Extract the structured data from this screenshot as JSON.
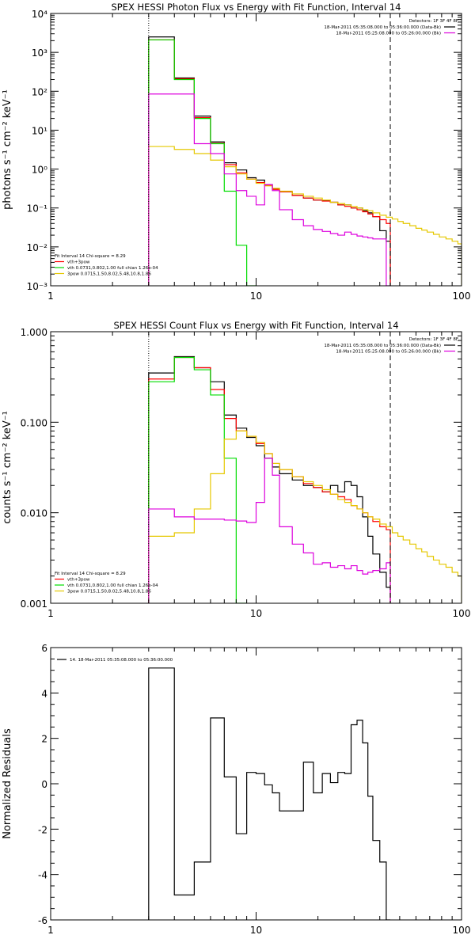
{
  "colors": {
    "black": "#000000",
    "red": "#ff0000",
    "green": "#00dd00",
    "yellow": "#e5c800",
    "magenta": "#dd00dd"
  },
  "chart_data": [
    {
      "type": "line",
      "title": "SPEX HESSI Photon Flux vs Energy with Fit Function, Interval 14",
      "ylabel": "photons s⁻¹ cm⁻² keV⁻¹",
      "xscale": "log",
      "yscale": "log",
      "xlim": [
        1,
        100
      ],
      "ylim": [
        0.001,
        10000
      ],
      "xticks": [
        {
          "v": 1,
          "label": "1"
        },
        {
          "v": 10,
          "label": "10"
        },
        {
          "v": 100,
          "label": "100"
        }
      ],
      "yticks": [
        {
          "v": 0.001,
          "label": "10⁻³"
        },
        {
          "v": 0.01,
          "label": "10⁻²"
        },
        {
          "v": 0.1,
          "label": "10⁻¹"
        },
        {
          "v": 1,
          "label": "10⁰"
        },
        {
          "v": 10,
          "label": "10¹"
        },
        {
          "v": 100,
          "label": "10²"
        },
        {
          "v": 1000,
          "label": "10³"
        },
        {
          "v": 10000,
          "label": "10⁴"
        }
      ],
      "vlines": [
        {
          "x": 3,
          "style": "dotted"
        },
        {
          "x": 45,
          "style": "dashed"
        }
      ],
      "legend_tr": {
        "header": "Detectors: 1F 3F 4F 8F",
        "items": [
          {
            "text": "18-Mar-2011 05:35:08.000 to 05:36:00.000 (Data-Bk)",
            "color": "black"
          },
          {
            "text": "18-Mar-2011 05:25:08.000 to 05:26:00.000 (Bk)",
            "color": "magenta"
          }
        ]
      },
      "legend_bl": {
        "header": "Fit Interval 14   Chi-square = 8.29",
        "items": [
          {
            "text": "vth+3pow",
            "color": "red"
          },
          {
            "text": "vth 0.0731,0.802,1.00  full chian 1.26e-04",
            "color": "green"
          },
          {
            "text": "3pow 0.0715,1.50,8.02,5.48,10.8,1.86",
            "color": "yellow"
          }
        ]
      },
      "series": [
        {
          "color": "black",
          "edges": [
            3,
            4,
            5,
            6,
            7,
            8,
            9,
            10,
            11,
            12,
            13,
            15,
            17,
            19,
            21,
            23,
            25,
            27,
            29,
            31,
            33,
            35,
            37,
            40,
            43,
            45
          ],
          "values": [
            2500,
            220,
            23,
            5,
            1.45,
            0.95,
            0.6,
            0.52,
            0.4,
            0.31,
            0.26,
            0.21,
            0.18,
            0.16,
            0.155,
            0.14,
            0.12,
            0.12,
            0.1,
            0.1,
            0.085,
            0.075,
            0.06,
            0.026,
            0.014
          ]
        },
        {
          "color": "red",
          "edges": [
            3,
            4,
            5,
            6,
            7,
            8,
            9,
            10,
            11,
            12,
            13,
            15,
            17,
            19,
            21,
            23,
            25,
            27,
            29,
            31,
            33,
            35,
            37,
            40,
            43,
            45
          ],
          "values": [
            2100,
            210,
            21,
            4.6,
            1.3,
            0.8,
            0.55,
            0.45,
            0.38,
            0.3,
            0.26,
            0.21,
            0.18,
            0.16,
            0.15,
            0.14,
            0.12,
            0.11,
            0.1,
            0.09,
            0.08,
            0.07,
            0.06,
            0.05,
            0.04
          ]
        },
        {
          "color": "green",
          "edges": [
            3,
            4,
            5,
            6,
            7,
            8,
            9,
            10
          ],
          "values": [
            2100,
            200,
            20,
            4.5,
            0.27,
            0.011,
            0.001
          ]
        },
        {
          "color": "yellow",
          "edges": [
            3,
            4,
            5,
            6,
            7,
            8,
            9,
            10,
            11,
            12,
            13,
            15,
            17,
            19,
            21,
            23,
            25,
            27,
            29,
            31,
            33,
            35,
            37,
            40,
            43,
            46,
            49,
            52,
            56,
            60,
            64,
            68,
            73,
            78,
            84,
            90,
            96,
            100
          ],
          "values": [
            3.8,
            3.2,
            2.5,
            1.7,
            1.15,
            0.75,
            0.55,
            0.43,
            0.37,
            0.32,
            0.27,
            0.23,
            0.2,
            0.18,
            0.16,
            0.14,
            0.13,
            0.12,
            0.11,
            0.1,
            0.09,
            0.085,
            0.075,
            0.065,
            0.058,
            0.052,
            0.045,
            0.04,
            0.035,
            0.03,
            0.027,
            0.024,
            0.021,
            0.018,
            0.016,
            0.014,
            0.012
          ]
        },
        {
          "color": "magenta",
          "edges": [
            3,
            4,
            5,
            6,
            7,
            8,
            9,
            10,
            11,
            12,
            13,
            15,
            17,
            19,
            21,
            23,
            25,
            27,
            29,
            31,
            33,
            35,
            37,
            40,
            43,
            45
          ],
          "values": [
            85,
            85,
            4.5,
            2.5,
            0.75,
            0.28,
            0.2,
            0.12,
            0.4,
            0.28,
            0.09,
            0.05,
            0.035,
            0.028,
            0.025,
            0.022,
            0.02,
            0.024,
            0.021,
            0.019,
            0.018,
            0.017,
            0.016,
            0.016,
            0.001
          ]
        }
      ]
    },
    {
      "type": "line",
      "title": "SPEX HESSI Count Flux vs Energy with Fit Function, Interval 14",
      "ylabel": "counts s⁻¹ cm⁻² keV⁻¹",
      "xscale": "log",
      "yscale": "log",
      "xlim": [
        1,
        100
      ],
      "ylim": [
        0.001,
        1
      ],
      "xticks": [
        {
          "v": 1,
          "label": "1"
        },
        {
          "v": 10,
          "label": "10"
        },
        {
          "v": 100,
          "label": "100"
        }
      ],
      "yticks": [
        {
          "v": 0.001,
          "label": "0.001"
        },
        {
          "v": 0.01,
          "label": "0.010"
        },
        {
          "v": 0.1,
          "label": "0.100"
        },
        {
          "v": 1,
          "label": "1.000"
        }
      ],
      "vlines": [
        {
          "x": 3,
          "style": "dotted"
        },
        {
          "x": 45,
          "style": "dashed"
        }
      ],
      "legend_tr": {
        "header": "Detectors: 1F 3F 4F 8F",
        "items": [
          {
            "text": "18-Mar-2011 05:35:08.000 to 05:36:00.000 (Data-Bk)",
            "color": "black"
          },
          {
            "text": "18-Mar-2011 05:25:08.000 to 05:26:00.000 (Bk)",
            "color": "magenta"
          }
        ]
      },
      "legend_bl": {
        "header": "Fit Interval 14   Chi-square = 8.29",
        "items": [
          {
            "text": "vth+3pow",
            "color": "red"
          },
          {
            "text": "vth 0.0731,0.802,1.00  full chian 1.26e-04",
            "color": "green"
          },
          {
            "text": "3pow 0.0715,1.50,8.02,5.48,10.8,1.86",
            "color": "yellow"
          }
        ]
      },
      "series": [
        {
          "color": "black",
          "edges": [
            3,
            4,
            5,
            6,
            7,
            8,
            9,
            10,
            11,
            12,
            13,
            15,
            17,
            19,
            21,
            23,
            25,
            27,
            29,
            31,
            33,
            35,
            37,
            40,
            43,
            45
          ],
          "values": [
            0.35,
            0.53,
            0.4,
            0.28,
            0.12,
            0.086,
            0.068,
            0.055,
            0.04,
            0.032,
            0.027,
            0.023,
            0.02,
            0.019,
            0.017,
            0.02,
            0.017,
            0.022,
            0.02,
            0.015,
            0.009,
            0.0055,
            0.0035,
            0.0022,
            0.0015
          ]
        },
        {
          "color": "red",
          "edges": [
            3,
            4,
            5,
            6,
            7,
            8,
            9,
            10,
            11,
            12,
            13,
            15,
            17,
            19,
            21,
            23,
            25,
            27,
            29,
            31,
            33,
            35,
            37,
            40,
            43,
            45
          ],
          "values": [
            0.3,
            0.52,
            0.4,
            0.23,
            0.11,
            0.08,
            0.07,
            0.058,
            0.045,
            0.035,
            0.03,
            0.025,
            0.021,
            0.019,
            0.017,
            0.016,
            0.015,
            0.014,
            0.012,
            0.011,
            0.01,
            0.009,
            0.008,
            0.007,
            0.0065
          ]
        },
        {
          "color": "green",
          "edges": [
            3,
            4,
            5,
            6,
            7,
            8,
            9
          ],
          "values": [
            0.28,
            0.52,
            0.38,
            0.2,
            0.04,
            0.001
          ]
        },
        {
          "color": "yellow",
          "edges": [
            3,
            4,
            5,
            6,
            7,
            8,
            9,
            10,
            11,
            12,
            13,
            15,
            17,
            19,
            21,
            23,
            25,
            27,
            29,
            31,
            33,
            35,
            37,
            40,
            43,
            46,
            49,
            52,
            56,
            60,
            64,
            68,
            73,
            78,
            84,
            90,
            96,
            100
          ],
          "values": [
            0.0055,
            0.006,
            0.011,
            0.027,
            0.065,
            0.08,
            0.07,
            0.06,
            0.045,
            0.035,
            0.03,
            0.025,
            0.022,
            0.02,
            0.018,
            0.016,
            0.014,
            0.013,
            0.012,
            0.011,
            0.01,
            0.009,
            0.0085,
            0.0075,
            0.007,
            0.006,
            0.0055,
            0.005,
            0.0045,
            0.004,
            0.0037,
            0.0033,
            0.003,
            0.0027,
            0.0025,
            0.0022,
            0.002
          ]
        },
        {
          "color": "magenta",
          "edges": [
            3,
            4,
            5,
            6,
            7,
            8,
            9,
            10,
            11,
            12,
            13,
            15,
            17,
            19,
            21,
            23,
            25,
            27,
            29,
            31,
            33,
            35,
            37,
            40,
            43,
            45
          ],
          "values": [
            0.011,
            0.009,
            0.0085,
            0.0085,
            0.0083,
            0.0081,
            0.0078,
            0.013,
            0.04,
            0.026,
            0.007,
            0.0045,
            0.0036,
            0.0027,
            0.0028,
            0.0025,
            0.0026,
            0.0024,
            0.0026,
            0.0023,
            0.0021,
            0.0022,
            0.0023,
            0.0024,
            0.0028
          ]
        }
      ]
    },
    {
      "type": "line",
      "title": "",
      "ylabel": "Normalized Residuals",
      "xscale": "log",
      "yscale": "linear",
      "xlim": [
        1,
        100
      ],
      "ylim": [
        -6,
        6
      ],
      "xticks": [
        {
          "v": 1,
          "label": "1"
        },
        {
          "v": 10,
          "label": "10"
        },
        {
          "v": 100,
          "label": "100"
        }
      ],
      "yticks": [
        {
          "v": -6,
          "label": "-6"
        },
        {
          "v": -4,
          "label": "-4"
        },
        {
          "v": -2,
          "label": "-2"
        },
        {
          "v": 0,
          "label": "0"
        },
        {
          "v": 2,
          "label": "2"
        },
        {
          "v": 4,
          "label": "4"
        },
        {
          "v": 6,
          "label": "6"
        }
      ],
      "vlines": [],
      "legend_tl": {
        "items": [
          {
            "text": "14. 18-Mar-2011 05:35:08.000 to 05:36:00.000",
            "color": "black"
          }
        ]
      },
      "series": [
        {
          "color": "black",
          "edges": [
            3,
            4,
            5,
            6,
            7,
            8,
            9,
            10,
            11,
            12,
            13,
            15,
            17,
            19,
            21,
            23,
            25,
            27,
            29,
            31,
            33,
            35,
            37,
            40,
            43,
            45
          ],
          "values": [
            5.1,
            -4.9,
            -3.45,
            2.9,
            0.3,
            -2.2,
            0.5,
            0.45,
            -0.05,
            -0.4,
            -1.2,
            -1.2,
            0.95,
            -0.4,
            0.45,
            0.05,
            0.5,
            0.45,
            2.6,
            2.8,
            1.8,
            -0.55,
            -2.5,
            -3.45,
            -6
          ]
        }
      ]
    }
  ]
}
